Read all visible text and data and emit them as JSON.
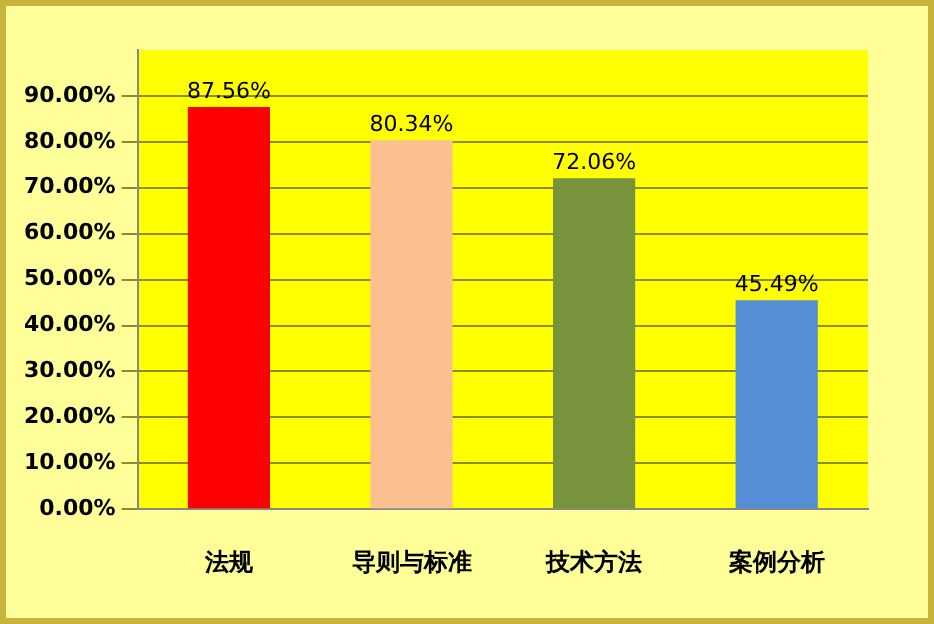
{
  "chart_data": {
    "type": "bar",
    "categories": [
      "法规",
      "导则与标准",
      "技术方法",
      "案例分析"
    ],
    "values": [
      87.56,
      80.34,
      72.06,
      45.49
    ],
    "colors": [
      "#ff0000",
      "#fac090",
      "#77933c",
      "#558ed5"
    ],
    "value_labels": [
      "87.56%",
      "80.34%",
      "72.06%",
      "45.49%"
    ],
    "ylim": [
      0,
      100
    ],
    "yticks": [
      {
        "value": 0,
        "label": "0.00%"
      },
      {
        "value": 10,
        "label": "10.00%"
      },
      {
        "value": 20,
        "label": "20.00%"
      },
      {
        "value": 30,
        "label": "30.00%"
      },
      {
        "value": 40,
        "label": "40.00%"
      },
      {
        "value": 50,
        "label": "50.00%"
      },
      {
        "value": 60,
        "label": "60.00%"
      },
      {
        "value": 70,
        "label": "70.00%"
      },
      {
        "value": 80,
        "label": "80.00%"
      },
      {
        "value": 90,
        "label": "90.00%"
      }
    ],
    "grid": "y",
    "legend": false
  }
}
